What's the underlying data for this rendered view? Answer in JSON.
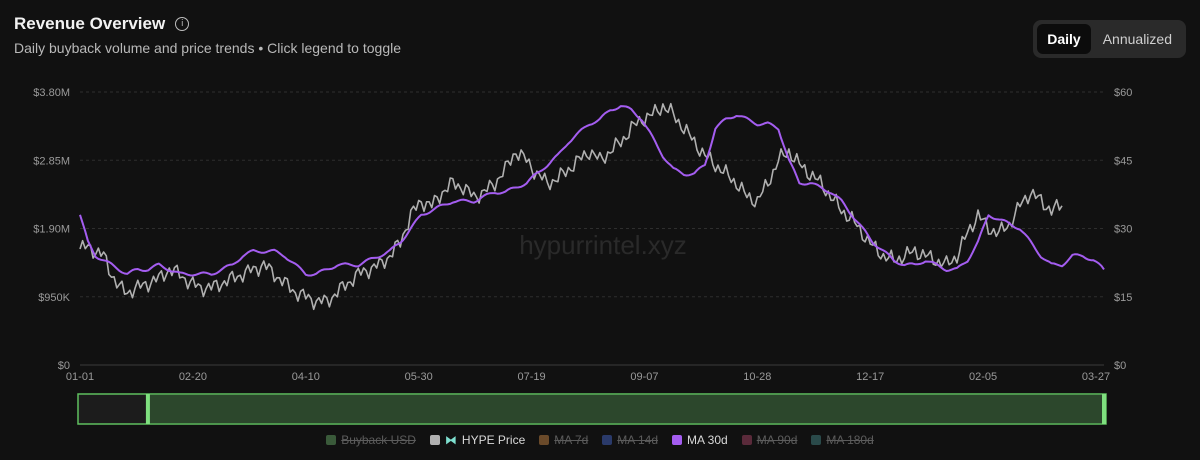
{
  "header": {
    "title": "Revenue Overview",
    "subtitle": "Daily buyback volume and price trends • Click legend to toggle"
  },
  "toggle": [
    {
      "label": "Daily",
      "active": true
    },
    {
      "label": "Annualized",
      "active": false
    }
  ],
  "watermark": "hypurrintel.xyz",
  "chart_data": {
    "type": "line",
    "x_ticks": [
      "01-01",
      "02-20",
      "04-10",
      "05-30",
      "07-19",
      "09-07",
      "10-28",
      "12-17",
      "02-05",
      "03-27"
    ],
    "y_left_ticks": [
      "$0",
      "$950K",
      "$1.90M",
      "$2.85M",
      "$3.80M"
    ],
    "y_left_range": [
      0,
      3800000
    ],
    "y_right_ticks": [
      "$0",
      "$15",
      "$30",
      "$45",
      "$60"
    ],
    "y_right_range": [
      0,
      60
    ],
    "grid": true,
    "series": [
      {
        "name": "HYPE Price",
        "axis": "right",
        "color": "#b0b0b0",
        "points": [
          [
            0,
            25.5
          ],
          [
            3,
            26
          ],
          [
            6,
            25
          ],
          [
            9,
            24
          ],
          [
            12,
            20
          ],
          [
            15,
            17
          ],
          [
            18,
            16
          ],
          [
            22,
            17
          ],
          [
            26,
            18
          ],
          [
            30,
            19
          ],
          [
            34,
            21
          ],
          [
            38,
            20
          ],
          [
            42,
            18
          ],
          [
            46,
            17
          ],
          [
            50,
            17
          ],
          [
            54,
            18
          ],
          [
            58,
            19
          ],
          [
            62,
            20
          ],
          [
            66,
            21
          ],
          [
            70,
            22
          ],
          [
            74,
            20
          ],
          [
            78,
            18
          ],
          [
            82,
            16
          ],
          [
            86,
            15
          ],
          [
            90,
            14
          ],
          [
            94,
            14
          ],
          [
            98,
            16
          ],
          [
            102,
            18
          ],
          [
            106,
            20
          ],
          [
            110,
            21
          ],
          [
            114,
            22
          ],
          [
            118,
            24
          ],
          [
            122,
            27
          ],
          [
            126,
            33
          ],
          [
            130,
            36
          ],
          [
            134,
            35
          ],
          [
            138,
            38
          ],
          [
            142,
            40
          ],
          [
            146,
            39
          ],
          [
            150,
            37
          ],
          [
            154,
            38
          ],
          [
            158,
            40
          ],
          [
            162,
            43
          ],
          [
            166,
            47
          ],
          [
            170,
            45
          ],
          [
            174,
            42
          ],
          [
            178,
            40
          ],
          [
            182,
            41
          ],
          [
            186,
            43
          ],
          [
            190,
            45
          ],
          [
            194,
            47
          ],
          [
            198,
            45
          ],
          [
            202,
            47
          ],
          [
            206,
            49
          ],
          [
            210,
            52
          ],
          [
            214,
            54
          ],
          [
            218,
            55
          ],
          [
            222,
            57
          ],
          [
            226,
            55
          ],
          [
            230,
            52
          ],
          [
            234,
            49
          ],
          [
            238,
            46
          ],
          [
            242,
            44
          ],
          [
            246,
            42
          ],
          [
            250,
            40
          ],
          [
            254,
            37
          ],
          [
            258,
            36
          ],
          [
            262,
            40
          ],
          [
            266,
            45
          ],
          [
            270,
            47
          ],
          [
            274,
            44
          ],
          [
            278,
            42
          ],
          [
            282,
            40
          ],
          [
            286,
            37
          ],
          [
            290,
            34
          ],
          [
            294,
            32
          ],
          [
            298,
            29
          ],
          [
            302,
            26
          ],
          [
            306,
            24
          ],
          [
            310,
            23
          ],
          [
            314,
            24
          ],
          [
            318,
            25
          ],
          [
            322,
            24
          ],
          [
            326,
            23
          ],
          [
            330,
            22
          ],
          [
            334,
            24
          ],
          [
            338,
            29
          ],
          [
            342,
            33
          ],
          [
            346,
            30
          ],
          [
            350,
            29
          ],
          [
            354,
            31
          ],
          [
            358,
            35
          ],
          [
            362,
            38
          ],
          [
            366,
            36
          ],
          [
            370,
            34
          ],
          [
            374,
            35
          ]
        ]
      },
      {
        "name": "MA 30d",
        "axis": "right",
        "color": "#a45df0",
        "points": [
          [
            0,
            33
          ],
          [
            3,
            27
          ],
          [
            6,
            24
          ],
          [
            9,
            23
          ],
          [
            12,
            22
          ],
          [
            15,
            21
          ],
          [
            18,
            20
          ],
          [
            22,
            21
          ],
          [
            26,
            21
          ],
          [
            30,
            22
          ],
          [
            34,
            21
          ],
          [
            38,
            20
          ],
          [
            42,
            20
          ],
          [
            46,
            20
          ],
          [
            50,
            20
          ],
          [
            54,
            21
          ],
          [
            58,
            22
          ],
          [
            62,
            24
          ],
          [
            66,
            25
          ],
          [
            70,
            25
          ],
          [
            74,
            25
          ],
          [
            78,
            24
          ],
          [
            82,
            22
          ],
          [
            86,
            20
          ],
          [
            90,
            20
          ],
          [
            94,
            21
          ],
          [
            98,
            22
          ],
          [
            102,
            22
          ],
          [
            106,
            22
          ],
          [
            110,
            23
          ],
          [
            114,
            24
          ],
          [
            118,
            25
          ],
          [
            122,
            27
          ],
          [
            126,
            30
          ],
          [
            130,
            33
          ],
          [
            134,
            34
          ],
          [
            138,
            35
          ],
          [
            142,
            36
          ],
          [
            146,
            36
          ],
          [
            150,
            36
          ],
          [
            154,
            37
          ],
          [
            158,
            38
          ],
          [
            162,
            38
          ],
          [
            166,
            39
          ],
          [
            170,
            40
          ],
          [
            174,
            42
          ],
          [
            178,
            44
          ],
          [
            182,
            46
          ],
          [
            186,
            49
          ],
          [
            190,
            51
          ],
          [
            194,
            53
          ],
          [
            198,
            54
          ],
          [
            202,
            56
          ],
          [
            206,
            57
          ],
          [
            210,
            56
          ],
          [
            214,
            54
          ],
          [
            218,
            50
          ],
          [
            222,
            46
          ],
          [
            226,
            43
          ],
          [
            230,
            42
          ],
          [
            234,
            42
          ],
          [
            238,
            44
          ],
          [
            242,
            52
          ],
          [
            246,
            54
          ],
          [
            250,
            55
          ],
          [
            254,
            54
          ],
          [
            258,
            53
          ],
          [
            262,
            53
          ],
          [
            266,
            52
          ],
          [
            270,
            45
          ],
          [
            274,
            40
          ],
          [
            278,
            40
          ],
          [
            282,
            39
          ],
          [
            286,
            38
          ],
          [
            290,
            36
          ],
          [
            294,
            33
          ],
          [
            298,
            30
          ],
          [
            302,
            27
          ],
          [
            306,
            25
          ],
          [
            310,
            23
          ],
          [
            314,
            22
          ],
          [
            318,
            22
          ],
          [
            322,
            23
          ],
          [
            326,
            22
          ],
          [
            330,
            21
          ],
          [
            334,
            21
          ],
          [
            338,
            23
          ],
          [
            342,
            27
          ],
          [
            346,
            33
          ],
          [
            350,
            32
          ],
          [
            354,
            31
          ],
          [
            358,
            30
          ],
          [
            362,
            27
          ],
          [
            366,
            24
          ],
          [
            370,
            22
          ],
          [
            374,
            22
          ],
          [
            378,
            24
          ],
          [
            382,
            24
          ],
          [
            386,
            23
          ],
          [
            390,
            21
          ]
        ]
      }
    ],
    "legend": [
      {
        "label": "Buyback USD",
        "color": "#3a5a3a",
        "active": false
      },
      {
        "label": "HYPE Price",
        "color": "#b0b0b0",
        "active": true,
        "icon": "hype-logo-icon"
      },
      {
        "label": "MA 7d",
        "color": "#6a4a2a",
        "active": false
      },
      {
        "label": "MA 14d",
        "color": "#2a3a6a",
        "active": false
      },
      {
        "label": "MA 30d",
        "color": "#a45df0",
        "active": true
      },
      {
        "label": "MA 90d",
        "color": "#5a2a3a",
        "active": false
      },
      {
        "label": "MA 180d",
        "color": "#2a4a4a",
        "active": false
      }
    ]
  },
  "brush": {
    "start_fraction": 0.068,
    "end_fraction": 1.0
  }
}
